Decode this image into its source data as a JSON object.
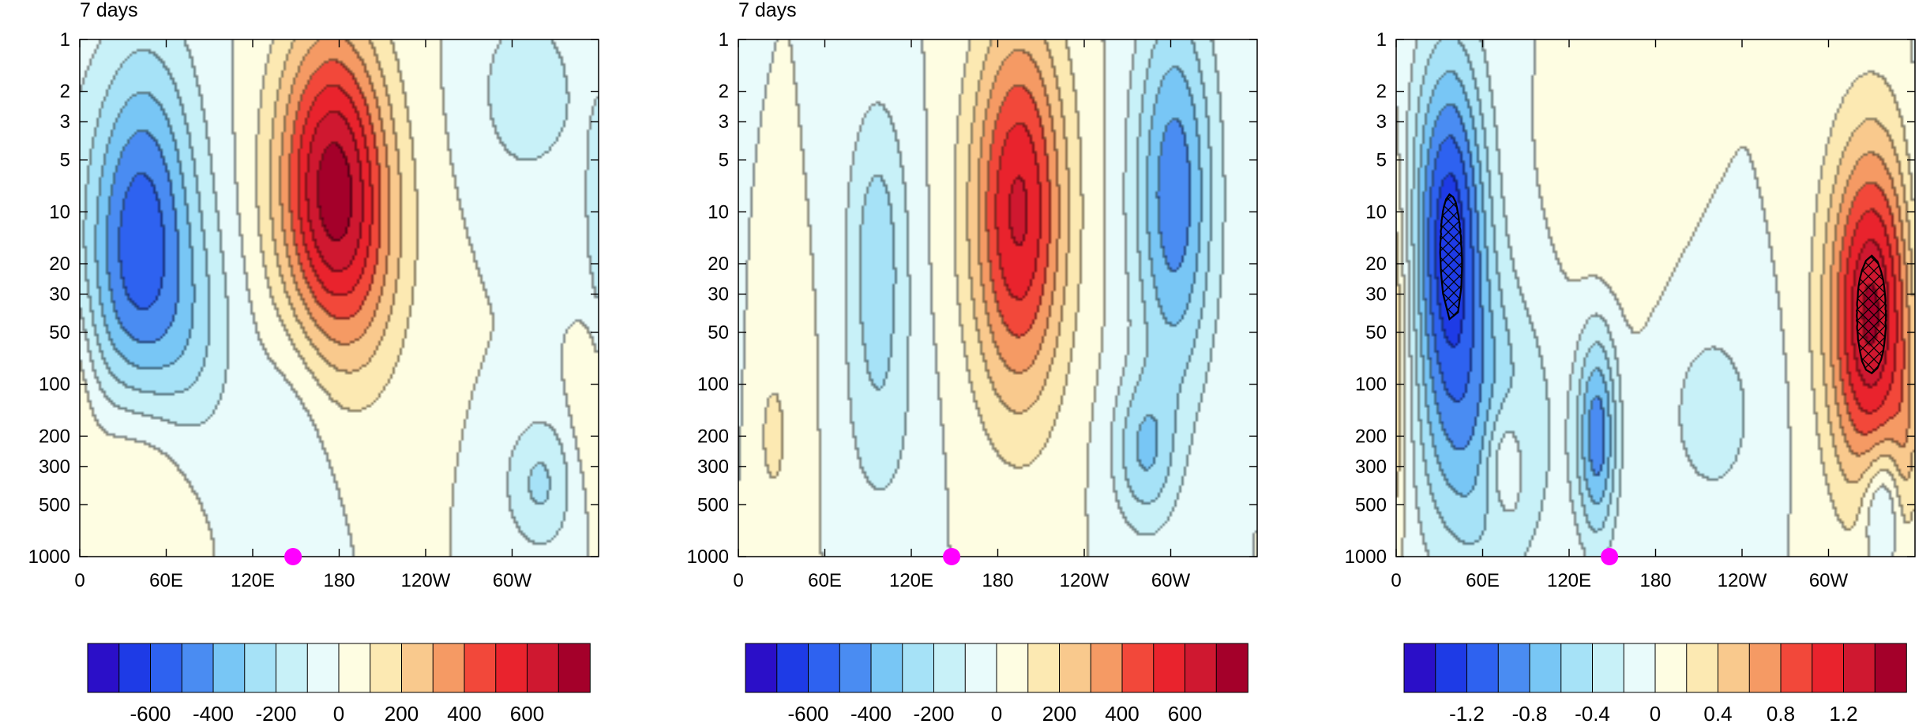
{
  "chart_data": [
    {
      "type": "heatmap",
      "title": "7 days",
      "xlabel": "",
      "ylabel": "",
      "x_ticks": [
        "0",
        "60E",
        "120E",
        "180",
        "120W",
        "60W"
      ],
      "y_ticks": [
        "1",
        "2",
        "3",
        "5",
        "10",
        "20",
        "30",
        "50",
        "100",
        "200",
        "300",
        "500",
        "1000"
      ],
      "y_scale": "log",
      "y_reversed": true,
      "x_range": [
        0,
        360
      ],
      "y_range": [
        1,
        1000
      ],
      "marker": {
        "lon": 148,
        "lev": 1000,
        "color": "#ff00ff"
      },
      "hatched": false,
      "colorbar": {
        "labels": [
          "-600",
          "-400",
          "-200",
          "0",
          "200",
          "400",
          "600"
        ],
        "min": -800,
        "max": 800,
        "step": 100
      },
      "fields": [
        {
          "lon": 45,
          "lev": 9,
          "value": -420,
          "sx": 38,
          "sy": 1.0
        },
        {
          "lon": 35,
          "lev": 30,
          "value": -200,
          "sx": 35,
          "sy": 0.8
        },
        {
          "lon": 80,
          "lev": 60,
          "value": -150,
          "sx": 30,
          "sy": 0.7
        },
        {
          "lon": 175,
          "lev": 6,
          "value": 640,
          "sx": 38,
          "sy": 0.9
        },
        {
          "lon": 190,
          "lev": 20,
          "value": 200,
          "sx": 40,
          "sy": 0.8
        },
        {
          "lon": 310,
          "lev": 2,
          "value": -170,
          "sx": 35,
          "sy": 0.55
        },
        {
          "lon": 320,
          "lev": 380,
          "value": -220,
          "sx": 25,
          "sy": 0.4
        },
        {
          "lon": 40,
          "lev": 300,
          "value": 150,
          "sx": 40,
          "sy": 0.5
        },
        {
          "lon": 355,
          "lev": 100,
          "value": 120,
          "sx": 15,
          "sy": 0.5
        },
        {
          "lon": 150,
          "lev": 150,
          "value": -90,
          "sx": 30,
          "sy": 0.7
        }
      ]
    },
    {
      "type": "heatmap",
      "title": "7 days",
      "xlabel": "",
      "ylabel": "",
      "x_ticks": [
        "0",
        "60E",
        "120E",
        "180",
        "120W",
        "60W"
      ],
      "y_ticks": [
        "1",
        "2",
        "3",
        "5",
        "10",
        "20",
        "30",
        "50",
        "100",
        "200",
        "300",
        "500",
        "1000"
      ],
      "y_scale": "log",
      "y_reversed": true,
      "x_range": [
        0,
        360
      ],
      "y_range": [
        1,
        1000
      ],
      "marker": {
        "lon": 148,
        "lev": 1000,
        "color": "#ff00ff"
      },
      "hatched": false,
      "colorbar": {
        "labels": [
          "-600",
          "-400",
          "-200",
          "0",
          "200",
          "400",
          "600"
        ],
        "min": -800,
        "max": 800,
        "step": 100
      },
      "fields": [
        {
          "lon": 97,
          "lev": 18,
          "value": -260,
          "sx": 22,
          "sy": 0.9
        },
        {
          "lon": 100,
          "lev": 200,
          "value": -90,
          "sx": 30,
          "sy": 0.7
        },
        {
          "lon": 195,
          "lev": 10,
          "value": 620,
          "sx": 33,
          "sy": 1.1
        },
        {
          "lon": 303,
          "lev": 8,
          "value": -470,
          "sx": 28,
          "sy": 1.1
        },
        {
          "lon": 282,
          "lev": 250,
          "value": -280,
          "sx": 22,
          "sy": 0.45
        },
        {
          "lon": 25,
          "lev": 200,
          "value": 110,
          "sx": 22,
          "sy": 0.8
        },
        {
          "lon": 355,
          "lev": 100,
          "value": -60,
          "sx": 12,
          "sy": 0.8
        }
      ]
    },
    {
      "type": "heatmap",
      "title": "",
      "xlabel": "",
      "ylabel": "",
      "x_ticks": [
        "0",
        "60E",
        "120E",
        "180",
        "120W",
        "60W"
      ],
      "y_ticks": [
        "1",
        "2",
        "3",
        "5",
        "10",
        "20",
        "30",
        "50",
        "100",
        "200",
        "300",
        "500",
        "1000"
      ],
      "y_scale": "log",
      "y_reversed": true,
      "x_range": [
        0,
        360
      ],
      "y_range": [
        1,
        1000
      ],
      "marker": {
        "lon": 148,
        "lev": 1000,
        "color": "#ff00ff"
      },
      "hatched": true,
      "colorbar": {
        "labels": [
          "-1.2",
          "-0.8",
          "-0.4",
          "0",
          "0.4",
          "0.8",
          "1.2"
        ],
        "min": -1.6,
        "max": 1.6,
        "step": 0.2
      },
      "fields": [
        {
          "lon": 37,
          "lev": 13,
          "value": -1.3,
          "sx": 26,
          "sy": 1.05
        },
        {
          "lon": 60,
          "lev": 200,
          "value": -0.6,
          "sx": 45,
          "sy": 0.9
        },
        {
          "lon": 140,
          "lev": 200,
          "value": -0.9,
          "sx": 14,
          "sy": 0.6
        },
        {
          "lon": 330,
          "lev": 40,
          "value": 1.45,
          "sx": 30,
          "sy": 1.0
        },
        {
          "lon": 337,
          "lev": 500,
          "value": -0.55,
          "sx": 14,
          "sy": 0.35
        },
        {
          "lon": 75,
          "lev": 280,
          "value": 0.45,
          "sx": 14,
          "sy": 0.35
        },
        {
          "lon": 150,
          "lev": 8,
          "value": 0.2,
          "sx": 35,
          "sy": 0.6
        },
        {
          "lon": 220,
          "lev": 150,
          "value": -0.3,
          "sx": 35,
          "sy": 0.6
        },
        {
          "lon": 355,
          "lev": 250,
          "value": 0.3,
          "sx": 10,
          "sy": 0.6
        }
      ]
    }
  ]
}
